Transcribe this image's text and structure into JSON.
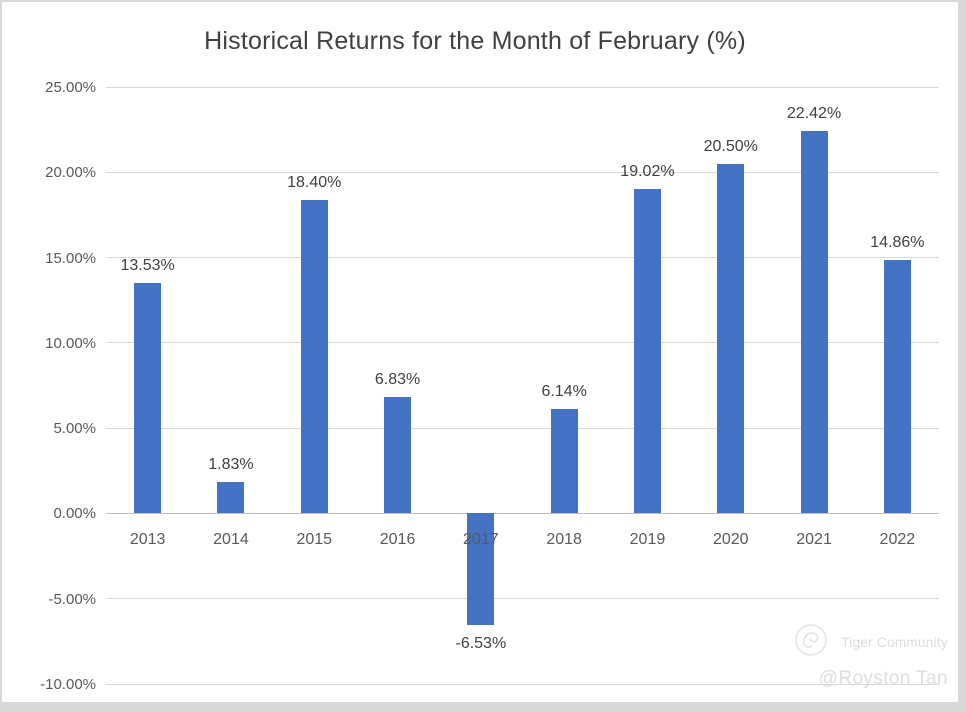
{
  "chart_data": {
    "type": "bar",
    "title": "Historical Returns for the Month of February (%)",
    "categories": [
      "2013",
      "2014",
      "2015",
      "2016",
      "2017",
      "2018",
      "2019",
      "2020",
      "2021",
      "2022"
    ],
    "values": [
      13.53,
      1.83,
      18.4,
      6.83,
      -6.53,
      6.14,
      19.02,
      20.5,
      22.42,
      14.86
    ],
    "value_labels": [
      "13.53%",
      "1.83%",
      "18.40%",
      "6.83%",
      "-6.53%",
      "6.14%",
      "19.02%",
      "20.50%",
      "22.42%",
      "14.86%"
    ],
    "xlabel": "",
    "ylabel": "",
    "ylim": [
      -10,
      25
    ],
    "y_ticks": [
      25,
      20,
      15,
      10,
      5,
      0,
      -5,
      -10
    ],
    "y_tick_labels": [
      "25.00%",
      "20.00%",
      "15.00%",
      "10.00%",
      "5.00%",
      "0.00%",
      "-5.00%",
      "-10.00%"
    ],
    "grid": true,
    "legend": "none",
    "colors": {
      "bar": "#4472C4",
      "gridline": "#D9D9D9",
      "axis_line": "#BFBFBF",
      "title": "#404040",
      "tick_label": "#595959",
      "data_label": "#404040"
    }
  },
  "watermark": {
    "community": "Tiger Community",
    "author": "@Royston Tan"
  }
}
